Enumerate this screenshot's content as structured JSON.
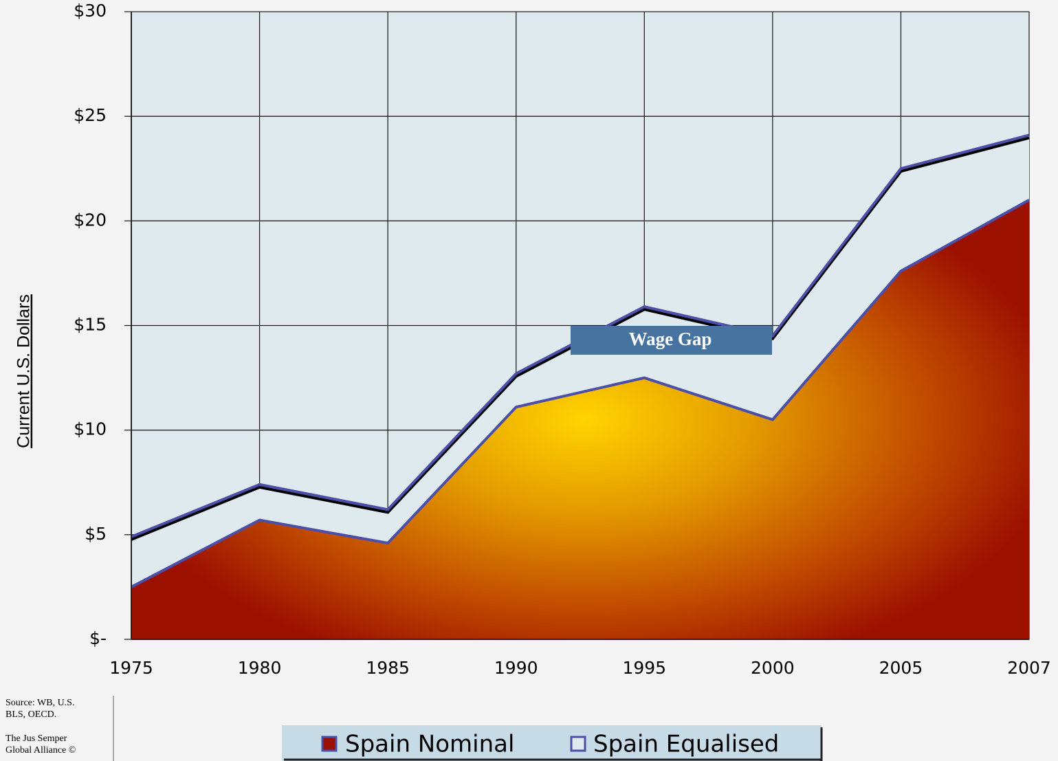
{
  "chart_data": {
    "type": "area",
    "y_axis_label": "Current U.S. Dollars",
    "annotation": "Wage Gap",
    "source": [
      "Source: WB, U.S.",
      "BLS, OECD.",
      "The Jus Semper",
      "Global Alliance ©"
    ],
    "categories": [
      "1975",
      "1980",
      "1985",
      "1990",
      "1995",
      "2000",
      "2005",
      "2007"
    ],
    "series": [
      {
        "name": "Spain Nominal",
        "color": "#d06000",
        "values": [
          2.5,
          5.7,
          4.6,
          11.1,
          12.5,
          10.5,
          17.6,
          21.0
        ]
      },
      {
        "name": "Spain Equalised",
        "color": "#4b4fa8",
        "values": [
          4.9,
          7.4,
          6.2,
          12.7,
          15.9,
          14.5,
          22.5,
          24.1
        ]
      }
    ],
    "ylim": [
      0,
      30
    ],
    "yticks": [
      {
        "value": 0,
        "label": "$-"
      },
      {
        "value": 5,
        "label": "$5"
      },
      {
        "value": 10,
        "label": "$10"
      },
      {
        "value": 15,
        "label": "$15"
      },
      {
        "value": 20,
        "label": "$20"
      },
      {
        "value": 25,
        "label": "$25"
      },
      {
        "value": 30,
        "label": "$30"
      }
    ],
    "grid": true
  }
}
